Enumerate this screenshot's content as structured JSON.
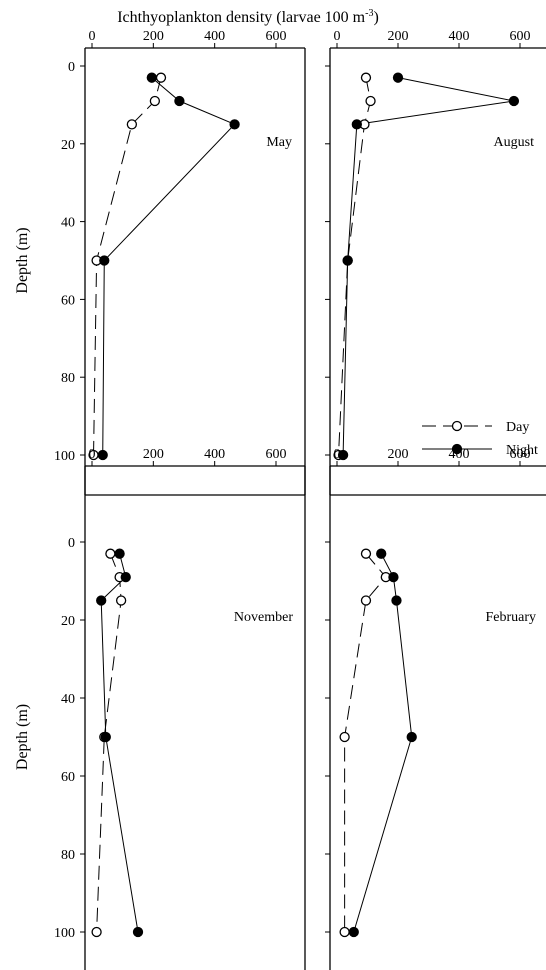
{
  "figure": {
    "top_label_main": "Ichthyoplankton density (larvae 100 m",
    "top_label_exp": "-3",
    "top_label_end": ")",
    "ylabel": "Depth (m)"
  },
  "legend": [
    {
      "label": "Day",
      "style": "dashed",
      "marker": "open-circle"
    },
    {
      "label": "Night",
      "style": "solid",
      "marker": "filled-circle"
    }
  ],
  "chart_data": [
    {
      "type": "line",
      "title": "May",
      "xlim": [
        0,
        700
      ],
      "ylim": [
        0,
        110
      ],
      "y_inverted": true,
      "xticks": [
        0,
        200,
        400,
        600
      ],
      "yticks": [
        0,
        20,
        40,
        60,
        80,
        100
      ],
      "x_tick_labels_shown": true,
      "y_tick_labels_shown": true,
      "series": [
        {
          "name": "Day",
          "points": [
            [
              225,
              3
            ],
            [
              205,
              9
            ],
            [
              130,
              15
            ],
            [
              15,
              50
            ],
            [
              5,
              100
            ]
          ]
        },
        {
          "name": "Night",
          "points": [
            [
              195,
              3
            ],
            [
              285,
              9
            ],
            [
              465,
              15
            ],
            [
              40,
              50
            ],
            [
              35,
              100
            ]
          ]
        }
      ]
    },
    {
      "type": "line",
      "title": "August",
      "xlim": [
        0,
        700
      ],
      "ylim": [
        0,
        110
      ],
      "y_inverted": true,
      "xticks": [
        0,
        200,
        400,
        600
      ],
      "yticks": [
        0,
        20,
        40,
        60,
        80,
        100
      ],
      "x_tick_labels_shown": true,
      "y_tick_labels_shown": false,
      "series": [
        {
          "name": "Day",
          "points": [
            [
              95,
              3
            ],
            [
              110,
              9
            ],
            [
              90,
              15
            ],
            [
              35,
              50
            ],
            [
              5,
              100
            ]
          ]
        },
        {
          "name": "Night",
          "points": [
            [
              200,
              3
            ],
            [
              580,
              9
            ],
            [
              65,
              15
            ],
            [
              35,
              50
            ],
            [
              20,
              100
            ]
          ]
        }
      ]
    },
    {
      "type": "line",
      "title": "November",
      "xlim": [
        0,
        700
      ],
      "ylim": [
        0,
        110
      ],
      "y_inverted": true,
      "xticks": [
        0,
        200,
        400,
        600
      ],
      "yticks": [
        0,
        20,
        40,
        60,
        80,
        100
      ],
      "x_tick_labels_shown": true,
      "y_tick_labels_shown": true,
      "series": [
        {
          "name": "Day",
          "points": [
            [
              60,
              3
            ],
            [
              90,
              9
            ],
            [
              95,
              15
            ],
            [
              40,
              50
            ],
            [
              15,
              100
            ]
          ]
        },
        {
          "name": "Night",
          "points": [
            [
              90,
              3
            ],
            [
              110,
              9
            ],
            [
              30,
              15
            ],
            [
              45,
              50
            ],
            [
              150,
              100
            ]
          ]
        }
      ]
    },
    {
      "type": "line",
      "title": "February",
      "xlim": [
        0,
        700
      ],
      "ylim": [
        0,
        110
      ],
      "y_inverted": true,
      "xticks": [
        0,
        200,
        400,
        600
      ],
      "yticks": [
        0,
        20,
        40,
        60,
        80,
        100
      ],
      "x_tick_labels_shown": true,
      "y_tick_labels_shown": false,
      "series": [
        {
          "name": "Day",
          "points": [
            [
              95,
              3
            ],
            [
              160,
              9
            ],
            [
              95,
              15
            ],
            [
              25,
              50
            ],
            [
              25,
              100
            ]
          ]
        },
        {
          "name": "Night",
          "points": [
            [
              145,
              3
            ],
            [
              185,
              9
            ],
            [
              195,
              15
            ],
            [
              245,
              50
            ],
            [
              55,
              100
            ]
          ]
        }
      ]
    }
  ]
}
